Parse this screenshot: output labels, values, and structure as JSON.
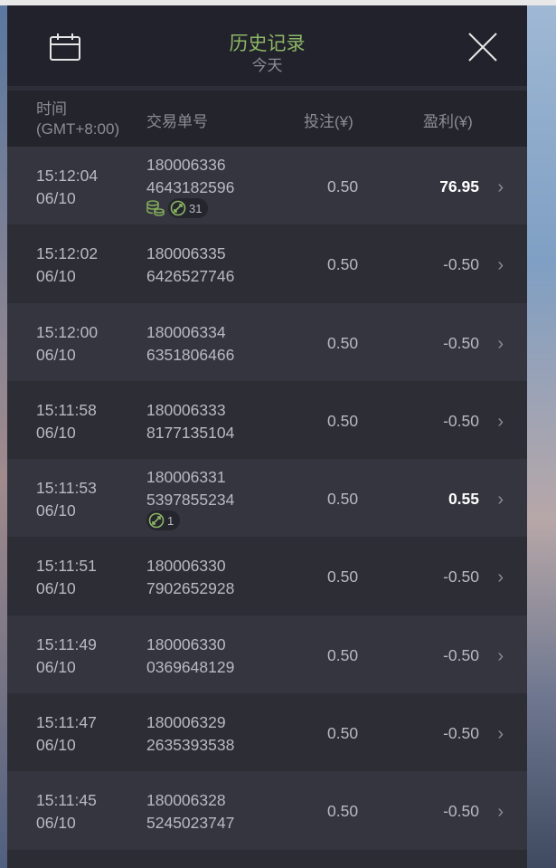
{
  "header": {
    "title": "历史记录",
    "subtitle": "今天",
    "calendar_icon": "calendar-icon",
    "close_icon": "close-icon",
    "accent": "#8db665"
  },
  "columns": {
    "time": "时间",
    "tz": "(GMT+8:00)",
    "id": "交易单号",
    "bet": "投注(¥)",
    "profit": "盈利(¥)"
  },
  "rows": [
    {
      "time": "15:12:04",
      "date": "06/10",
      "id1": "180006336",
      "id2": "4643182596",
      "bet": "0.50",
      "profit": "76.95",
      "win": true,
      "coins": true,
      "badge": "31"
    },
    {
      "time": "15:12:02",
      "date": "06/10",
      "id1": "180006335",
      "id2": "6426527746",
      "bet": "0.50",
      "profit": "-0.50"
    },
    {
      "time": "15:12:00",
      "date": "06/10",
      "id1": "180006334",
      "id2": "6351806466",
      "bet": "0.50",
      "profit": "-0.50"
    },
    {
      "time": "15:11:58",
      "date": "06/10",
      "id1": "180006333",
      "id2": "8177135104",
      "bet": "0.50",
      "profit": "-0.50"
    },
    {
      "time": "15:11:53",
      "date": "06/10",
      "id1": "180006331",
      "id2": "5397855234",
      "bet": "0.50",
      "profit": "0.55",
      "win": true,
      "badge": "1"
    },
    {
      "time": "15:11:51",
      "date": "06/10",
      "id1": "180006330",
      "id2": "7902652928",
      "bet": "0.50",
      "profit": "-0.50"
    },
    {
      "time": "15:11:49",
      "date": "06/10",
      "id1": "180006330",
      "id2": "0369648129",
      "bet": "0.50",
      "profit": "-0.50"
    },
    {
      "time": "15:11:47",
      "date": "06/10",
      "id1": "180006329",
      "id2": "2635393538",
      "bet": "0.50",
      "profit": "-0.50"
    },
    {
      "time": "15:11:45",
      "date": "06/10",
      "id1": "180006328",
      "id2": "5245023747",
      "bet": "0.50",
      "profit": "-0.50"
    }
  ]
}
